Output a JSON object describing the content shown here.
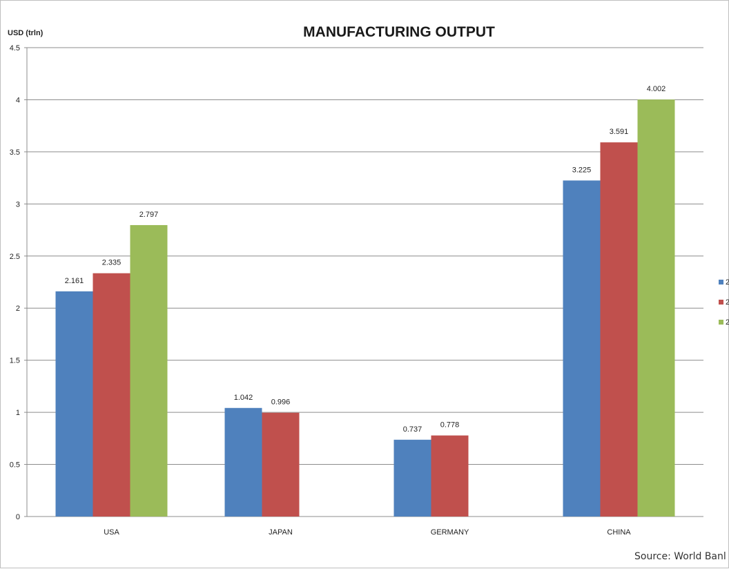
{
  "chart_data": {
    "type": "bar",
    "title": "MANUFACTURING OUTPUT",
    "ylabel": "USD (trln)",
    "xlabel": "",
    "ylim": [
      0,
      4.5
    ],
    "ytick_step": 0.5,
    "yticks": [
      "0",
      "0.5",
      "1",
      "1.5",
      "2",
      "2.5",
      "3",
      "3.5",
      "4",
      "4.5"
    ],
    "categories": [
      "USA",
      "JAPAN",
      "GERMANY",
      "CHINA"
    ],
    "grid": true,
    "legend_position": "right",
    "series": [
      {
        "name": "2",
        "color": "#4f81bd",
        "values": [
          2.161,
          1.042,
          0.737,
          3.225
        ],
        "labels": [
          "2.161",
          "1.042",
          "0.737",
          "3.225"
        ]
      },
      {
        "name": "2",
        "color": "#c0504d",
        "values": [
          2.335,
          0.996,
          0.778,
          3.591
        ],
        "labels": [
          "2.335",
          "0.996",
          "0.778",
          "3.591"
        ]
      },
      {
        "name": "2",
        "color": "#9bbb59",
        "values": [
          2.797,
          null,
          null,
          4.002
        ],
        "labels": [
          "2.797",
          "",
          "",
          "4.002"
        ]
      }
    ],
    "source": "Source: World Banl"
  }
}
